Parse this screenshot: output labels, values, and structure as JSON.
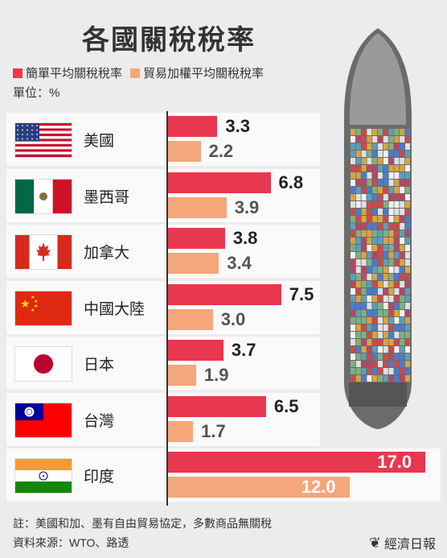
{
  "title": "各國關稅稅率",
  "legend": {
    "simple": "簡單平均關稅稅率",
    "trade": "貿易加權平均關稅稅率"
  },
  "unit": "單位：%",
  "colors": {
    "simple": "#e8384f",
    "trade": "#f5a67a"
  },
  "note": "註：美國和加、墨有自由貿易協定，多數商品無關稅",
  "source": "資料來源：WTO、路透",
  "brand": "經濟日報",
  "chart_data": {
    "type": "bar",
    "orientation": "horizontal",
    "categories": [
      "美國",
      "墨西哥",
      "加拿大",
      "中國大陸",
      "日本",
      "台灣",
      "印度"
    ],
    "series": [
      {
        "name": "簡單平均關稅稅率",
        "values": [
          3.3,
          6.8,
          3.8,
          7.5,
          3.7,
          6.5,
          17.0
        ],
        "labels": [
          "3.3",
          "6.8",
          "3.8",
          "7.5",
          "3.7",
          "6.5",
          "17.0"
        ]
      },
      {
        "name": "貿易加權平均關稅稅率",
        "values": [
          2.2,
          3.9,
          3.4,
          3.0,
          1.9,
          1.7,
          12.0
        ],
        "labels": [
          "2.2",
          "3.9",
          "3.4",
          "3.0",
          "1.9",
          "1.7",
          "12.0"
        ]
      }
    ],
    "flags": [
      "us-flag-icon",
      "mexico-flag-icon",
      "canada-flag-icon",
      "china-flag-icon",
      "japan-flag-icon",
      "taiwan-flag-icon",
      "india-flag-icon"
    ]
  }
}
